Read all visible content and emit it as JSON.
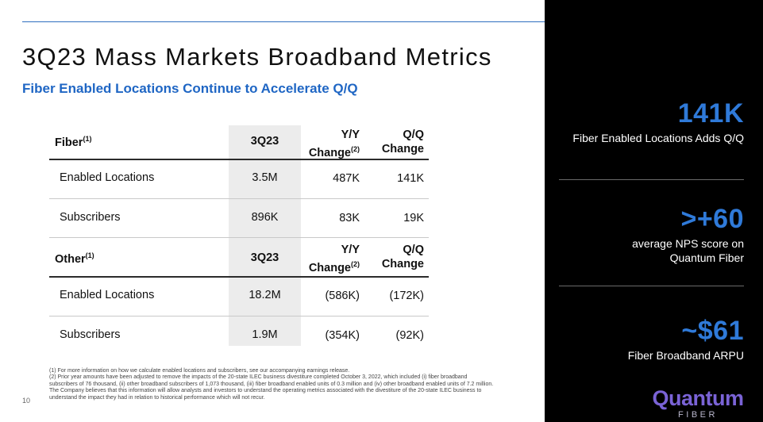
{
  "header": {
    "title": "3Q23 Mass Markets Broadband Metrics",
    "subtitle": "Fiber Enabled Locations Continue to Accelerate Q/Q"
  },
  "fiber_table": {
    "section": "Fiber",
    "section_note": "(1)",
    "col_period": "3Q23",
    "col_yy_line1": "Y/Y",
    "col_yy_line2": "Change",
    "col_yy_note": "(2)",
    "col_qq_line1": "Q/Q",
    "col_qq_line2": "Change",
    "rows": [
      {
        "label": "Enabled Locations",
        "value": "3.5M",
        "yy": "487K",
        "qq": "141K"
      },
      {
        "label": "Subscribers",
        "value": "896K",
        "yy": "83K",
        "qq": "19K"
      }
    ]
  },
  "other_table": {
    "section": "Other",
    "section_note": "(1)",
    "col_period": "3Q23",
    "col_yy_line1": "Y/Y",
    "col_yy_line2": "Change",
    "col_yy_note": "(2)",
    "col_qq_line1": "Q/Q",
    "col_qq_line2": "Change",
    "rows": [
      {
        "label": "Enabled Locations",
        "value": "18.2M",
        "yy": "(586K)",
        "qq": "(172K)"
      },
      {
        "label": "Subscribers",
        "value": "1.9M",
        "yy": "(354K)",
        "qq": "(92K)"
      }
    ]
  },
  "footnotes": [
    "(1) For more information on how we calculate enabled locations and subscribers, see our accompanying earnings release.",
    "(2) Prior year amounts have been adjusted to remove the impacts of the 20-state ILEC business divestiture completed October 3, 2022, which included (i) fiber broadband subscribers of 76 thousand, (ii) other broadband subscribers of 1,073 thousand, (iii) fiber broadband enabled units of 0.3 million and (iv) other broadband enabled units of 7.2 million. The Company believes that this information will allow analysts and investors to understand the operating metrics associated with the divestiture of the 20-state ILEC business to understand the impact they had in relation to historical performance which will not recur."
  ],
  "page_number": "10",
  "kpis": [
    {
      "value": "141K",
      "desc_line1": "Fiber Enabled Locations Adds Q/Q",
      "desc_line2": ""
    },
    {
      "value": ">+60",
      "desc_line1": "average NPS score on",
      "desc_line2": "Quantum Fiber"
    },
    {
      "value": "~$61",
      "desc_line1": "Fiber Broadband ARPU",
      "desc_line2": ""
    }
  ],
  "logo": {
    "name": "Quantum",
    "sub": "FIBER"
  },
  "colors": {
    "accent_blue": "#1f66c4",
    "kpi_blue": "#2f7ad9",
    "panel": "#000000",
    "logo_purple": "#7a63d6"
  }
}
